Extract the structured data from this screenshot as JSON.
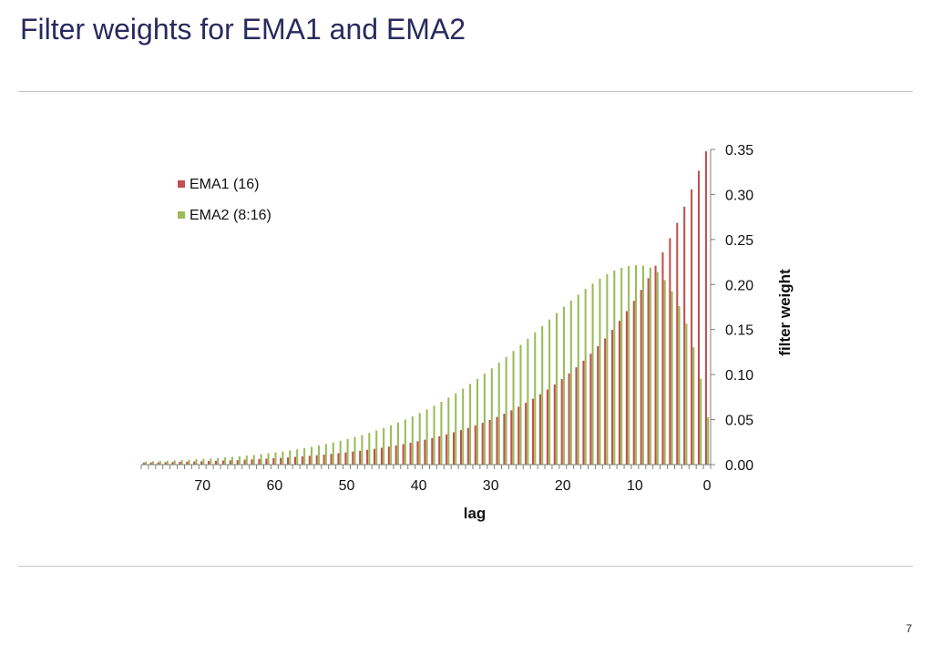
{
  "slide": {
    "title": "Filter weights for EMA1 and EMA2",
    "page_number": "7"
  },
  "colors": {
    "ema1": "#c0504d",
    "ema2": "#9bbb59",
    "title": "#2a2a5e",
    "rule": "#c4c4c4"
  },
  "chart_data": {
    "type": "bar",
    "title": "",
    "xlabel": "lag",
    "ylabel": "filter weight",
    "x_axis_reversed": true,
    "y_axis_position": "right",
    "xlim": [
      0,
      78
    ],
    "ylim": [
      0,
      0.35
    ],
    "yticks": [
      "0.00",
      "0.05",
      "0.10",
      "0.15",
      "0.20",
      "0.25",
      "0.30",
      "0.35"
    ],
    "xticks": [
      "70",
      "60",
      "50",
      "40",
      "30",
      "20",
      "10",
      "0"
    ],
    "legend_position": "top-left",
    "grid": false,
    "series": [
      {
        "name": "EMA1 (16)",
        "color": "#c0504d",
        "values": [
          0.3479,
          0.3263,
          0.3056,
          0.2864,
          0.2684,
          0.2515,
          0.2357,
          0.2209,
          0.207,
          0.194,
          0.1818,
          0.1704,
          0.1597,
          0.1496,
          0.1402,
          0.1314,
          0.1231,
          0.1154,
          0.1081,
          0.1013,
          0.095,
          0.089,
          0.0834,
          0.0781,
          0.0732,
          0.0686,
          0.0643,
          0.0603,
          0.0565,
          0.0529,
          0.0496,
          0.0465,
          0.0436,
          0.0408,
          0.0383,
          0.0359,
          0.0336,
          0.0315,
          0.0295,
          0.0277,
          0.0259,
          0.0243,
          0.0228,
          0.0213,
          0.02,
          0.0187,
          0.0176,
          0.0165,
          0.0154,
          0.0145,
          0.0135,
          0.0127,
          0.0119,
          0.0111,
          0.0104,
          0.0098,
          0.0092,
          0.0086,
          0.008,
          0.0075,
          0.0071,
          0.0066,
          0.0062,
          0.0058,
          0.0055,
          0.0051,
          0.0048,
          0.0045,
          0.0042,
          0.004,
          0.0037,
          0.0035,
          0.0033,
          0.0031,
          0.0029,
          0.0027,
          0.0025,
          0.0024,
          0.0022
        ]
      },
      {
        "name": "EMA2 (8:16)",
        "color": "#9bbb59",
        "values": [
          0.0526,
          0.0954,
          0.1303,
          0.1566,
          0.1761,
          0.1924,
          0.2048,
          0.2138,
          0.2189,
          0.2209,
          0.2214,
          0.2206,
          0.2185,
          0.2155,
          0.2114,
          0.2065,
          0.201,
          0.1951,
          0.1888,
          0.1821,
          0.1752,
          0.1682,
          0.1611,
          0.154,
          0.1469,
          0.1399,
          0.133,
          0.1262,
          0.1196,
          0.1132,
          0.1069,
          0.101,
          0.0952,
          0.0896,
          0.0843,
          0.0792,
          0.0744,
          0.0697,
          0.0654,
          0.0612,
          0.0572,
          0.0535,
          0.05,
          0.0467,
          0.0436,
          0.0406,
          0.0379,
          0.0353,
          0.0329,
          0.0306,
          0.0285,
          0.0265,
          0.0246,
          0.0229,
          0.0213,
          0.0197,
          0.0183,
          0.017,
          0.0158,
          0.0146,
          0.0136,
          0.0126,
          0.0117,
          0.0108,
          0.01,
          0.0093,
          0.0086,
          0.008,
          0.0074,
          0.0068,
          0.0063,
          0.0059,
          0.0054,
          0.005,
          0.0047,
          0.0043,
          0.004,
          0.0037,
          0.0034
        ]
      }
    ]
  }
}
